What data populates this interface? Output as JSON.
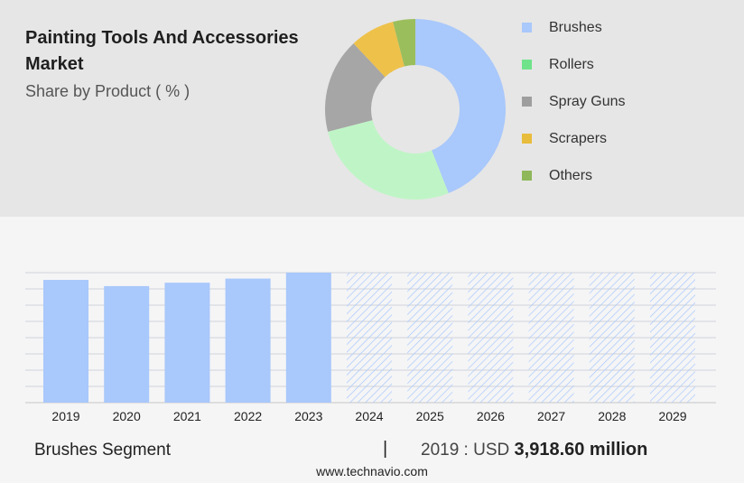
{
  "title": "Painting Tools And Accessories Market",
  "subtitle": "Share by Product ( % )",
  "legend": [
    {
      "label": "Brushes",
      "color": "#a9c8fb"
    },
    {
      "label": "Rollers",
      "color": "#6fe38a"
    },
    {
      "label": "Spray Guns",
      "color": "#9e9e9e"
    },
    {
      "label": "Scrapers",
      "color": "#e8bc3c"
    },
    {
      "label": "Others",
      "color": "#8fb85a"
    }
  ],
  "chart_data": [
    {
      "type": "pie",
      "variant": "donut",
      "categories": [
        "Brushes",
        "Rollers",
        "Spray Guns",
        "Scrapers",
        "Others"
      ],
      "values": [
        44,
        27,
        17,
        8,
        4
      ],
      "colors": [
        "#a9c8fb",
        "#bff5c6",
        "#a6a6a6",
        "#eec14a",
        "#9bbe5c"
      ]
    },
    {
      "type": "bar",
      "categories": [
        "2019",
        "2020",
        "2021",
        "2022",
        "2023",
        "2024",
        "2025",
        "2026",
        "2027",
        "2028",
        "2029"
      ],
      "values": [
        3918.6,
        3720,
        3830,
        3960,
        4150,
        4150,
        4150,
        4150,
        4150,
        4150,
        4150
      ],
      "forecast_from": "2024",
      "ylim": [
        0,
        4150
      ],
      "grid": true,
      "bar_color": "#a9c8fb",
      "forecast_pattern_color": "#a9c8fb"
    }
  ],
  "footer": {
    "segment": "Brushes Segment",
    "separator": "|",
    "year_label": "2019 : USD",
    "value": "3,918.60 million",
    "url": "www.technavio.com"
  }
}
